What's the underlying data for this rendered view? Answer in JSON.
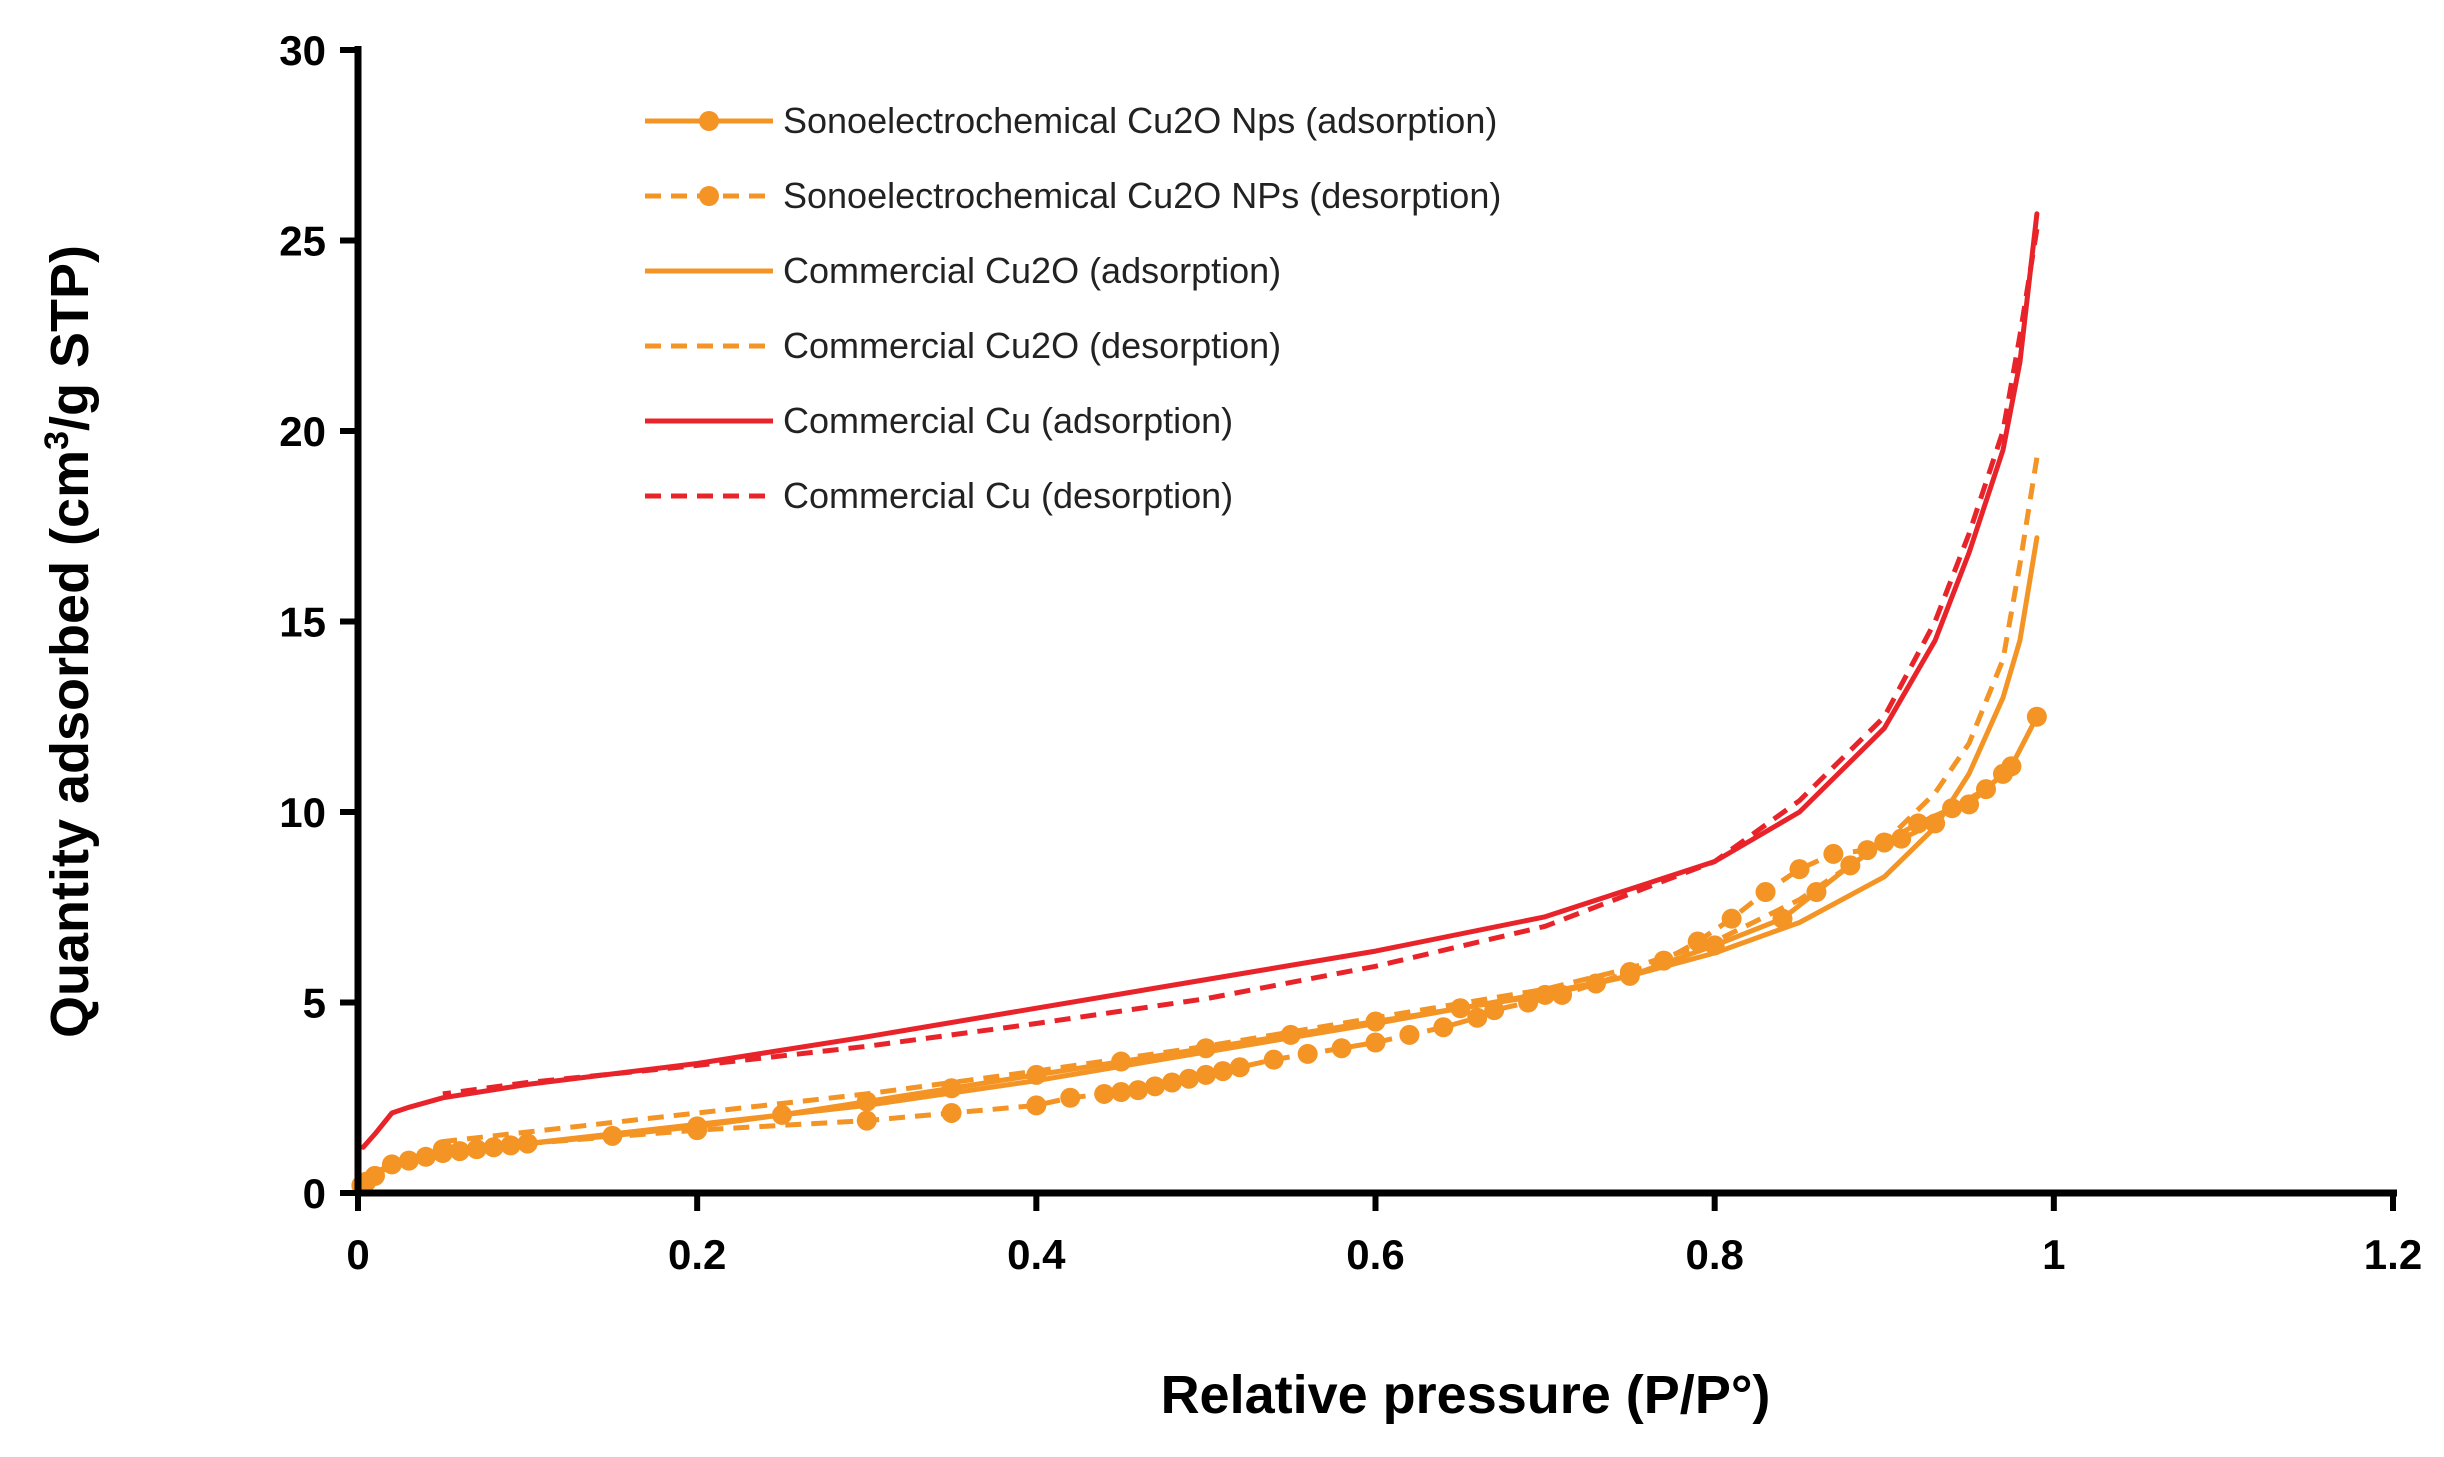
{
  "chart_data": {
    "type": "line",
    "title": "",
    "xlabel": "Relative pressure (P/P°)",
    "ylabel_prefix": "Quantity adsorbed (cm",
    "ylabel_sup": "3",
    "ylabel_suffix": "/g STP)",
    "xlim": [
      0,
      1.2
    ],
    "ylim": [
      0,
      30
    ],
    "x_ticks": [
      0,
      0.2,
      0.4,
      0.6,
      0.8,
      1,
      1.2
    ],
    "x_tick_labels": [
      "0",
      "0.2",
      "0.4",
      "0.6",
      "0.8",
      "1",
      "1.2"
    ],
    "y_ticks": [
      0,
      5,
      10,
      15,
      20,
      25,
      30
    ],
    "y_tick_labels": [
      "0",
      "5",
      "10",
      "15",
      "20",
      "25",
      "30"
    ],
    "grid": false,
    "legend_position": "top-left",
    "series": [
      {
        "name": "Sonoelectrochemical Cu2O Nps (adsorption)",
        "color": "#F39424",
        "dash": "solid",
        "markers": true,
        "x": [
          0.002,
          0.005,
          0.01,
          0.02,
          0.03,
          0.04,
          0.05,
          0.06,
          0.07,
          0.08,
          0.09,
          0.1,
          0.15,
          0.2,
          0.25,
          0.3,
          0.35,
          0.4,
          0.45,
          0.5,
          0.55,
          0.6,
          0.65,
          0.7,
          0.75,
          0.8,
          0.84,
          0.86,
          0.88,
          0.9,
          0.92,
          0.94,
          0.96,
          0.975,
          0.99
        ],
        "y": [
          0.2,
          0.3,
          0.45,
          0.75,
          0.85,
          0.95,
          1.05,
          1.1,
          1.15,
          1.2,
          1.25,
          1.3,
          1.5,
          1.75,
          2.05,
          2.4,
          2.75,
          3.1,
          3.45,
          3.8,
          4.15,
          4.5,
          4.85,
          5.2,
          5.7,
          6.5,
          7.2,
          7.9,
          8.6,
          9.2,
          9.7,
          10.1,
          10.6,
          11.2,
          12.5
        ]
      },
      {
        "name": "Sonoelectrochemical Cu2O NPs (desorption)",
        "color": "#F39424",
        "dash": "dashed",
        "markers": true,
        "x": [
          0.97,
          0.95,
          0.93,
          0.91,
          0.89,
          0.87,
          0.85,
          0.83,
          0.81,
          0.79,
          0.77,
          0.75,
          0.73,
          0.71,
          0.69,
          0.67,
          0.66,
          0.64,
          0.62,
          0.6,
          0.58,
          0.56,
          0.54,
          0.52,
          0.51,
          0.5,
          0.49,
          0.48,
          0.47,
          0.46,
          0.45,
          0.44,
          0.42,
          0.4,
          0.35,
          0.3,
          0.2,
          0.1,
          0.05
        ],
        "y": [
          11.0,
          10.2,
          9.7,
          9.3,
          9.0,
          8.9,
          8.5,
          7.9,
          7.2,
          6.6,
          6.1,
          5.8,
          5.5,
          5.2,
          5.0,
          4.8,
          4.6,
          4.35,
          4.15,
          3.95,
          3.8,
          3.65,
          3.5,
          3.3,
          3.2,
          3.1,
          3.0,
          2.9,
          2.8,
          2.7,
          2.65,
          2.6,
          2.5,
          2.3,
          2.1,
          1.9,
          1.65,
          1.3,
          1.15
        ]
      },
      {
        "name": "Commercial Cu2O (adsorption)",
        "color": "#F39424",
        "dash": "solid",
        "markers": false,
        "x": [
          0.0,
          0.02,
          0.05,
          0.1,
          0.2,
          0.3,
          0.4,
          0.5,
          0.6,
          0.7,
          0.75,
          0.8,
          0.85,
          0.9,
          0.93,
          0.95,
          0.97,
          0.98,
          0.99
        ],
        "y": [
          0.2,
          0.8,
          1.05,
          1.3,
          1.8,
          2.3,
          2.95,
          3.7,
          4.45,
          5.25,
          5.7,
          6.3,
          7.1,
          8.3,
          9.6,
          11.0,
          13.0,
          14.5,
          17.2
        ]
      },
      {
        "name": "Commercial Cu2O (desorption)",
        "color": "#F39424",
        "dash": "dashed",
        "markers": false,
        "x": [
          0.99,
          0.98,
          0.97,
          0.95,
          0.93,
          0.9,
          0.85,
          0.8,
          0.75,
          0.7,
          0.6,
          0.5,
          0.4,
          0.3,
          0.2,
          0.1,
          0.05
        ],
        "y": [
          19.3,
          16.5,
          14.0,
          11.8,
          10.5,
          9.2,
          7.7,
          6.6,
          5.9,
          5.35,
          4.6,
          3.85,
          3.2,
          2.6,
          2.1,
          1.6,
          1.35
        ]
      },
      {
        "name": "Commercial Cu (adsorption)",
        "color": "#E8242A",
        "dash": "solid",
        "markers": false,
        "x": [
          0.003,
          0.01,
          0.02,
          0.03,
          0.05,
          0.1,
          0.2,
          0.3,
          0.4,
          0.5,
          0.6,
          0.7,
          0.8,
          0.85,
          0.9,
          0.93,
          0.95,
          0.97,
          0.98,
          0.99
        ],
        "y": [
          1.2,
          1.55,
          2.1,
          2.25,
          2.5,
          2.85,
          3.4,
          4.1,
          4.85,
          5.6,
          6.35,
          7.25,
          8.7,
          10.0,
          12.2,
          14.5,
          16.8,
          19.5,
          21.8,
          25.7
        ]
      },
      {
        "name": "Commercial Cu (desorption)",
        "color": "#E8242A",
        "dash": "dashed",
        "markers": false,
        "x": [
          0.99,
          0.98,
          0.97,
          0.95,
          0.93,
          0.9,
          0.85,
          0.8,
          0.7,
          0.6,
          0.5,
          0.4,
          0.3,
          0.2,
          0.1,
          0.05
        ],
        "y": [
          25.3,
          22.5,
          20.0,
          17.3,
          15.0,
          12.5,
          10.3,
          8.7,
          7.0,
          5.95,
          5.1,
          4.45,
          3.85,
          3.35,
          2.9,
          2.6
        ]
      }
    ]
  }
}
